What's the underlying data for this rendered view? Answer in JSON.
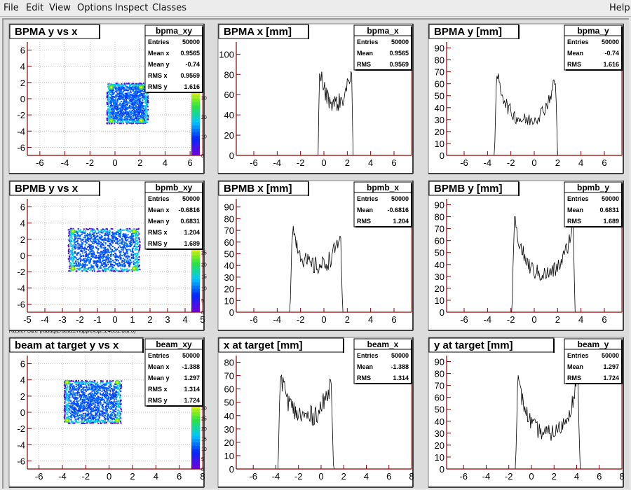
{
  "menubar": {
    "items": [
      "File",
      "Edit",
      "View",
      "Options",
      "Inspect",
      "Classes"
    ],
    "help": "Help"
  },
  "colors": {
    "axis": "#880000",
    "grid": "#aaaaaa",
    "hist": "#000000",
    "pad": "#ffffff",
    "bg": "#dcdcdc"
  },
  "raster_caption": "Raster Size (/adaql2/data1/happexsp_24851.dat.0)",
  "chart_data": [
    {
      "type": "heatmap",
      "title": "BPMA y vs x",
      "stats_title": "bpma_xy",
      "stats": [
        [
          "Entries",
          "50000"
        ],
        [
          "Mean x",
          "0.9565"
        ],
        [
          "Mean y",
          "-0.74"
        ],
        [
          "RMS x",
          "0.9569"
        ],
        [
          "RMS y",
          "1.616"
        ]
      ],
      "xlim": [
        -7,
        7
      ],
      "ylim": [
        -7,
        7
      ],
      "xticks": [
        -6,
        -4,
        -2,
        0,
        2,
        4,
        6
      ],
      "yticks": [
        -6,
        -4,
        -2,
        0,
        2,
        4,
        6
      ],
      "region": {
        "x": [
          -0.7,
          2.6
        ],
        "y": [
          -3.0,
          2.0
        ]
      },
      "hotspots": [
        [
          -0.3,
          1.4
        ],
        [
          2.1,
          1.4
        ],
        [
          -0.3,
          -2.7
        ],
        [
          2.1,
          -2.7
        ]
      ],
      "colorbar": {
        "labels": [
          "0",
          "10",
          "20",
          "30"
        ],
        "max": 35
      }
    },
    {
      "type": "line",
      "title": "BPMA x [mm]",
      "stats_title": "bpma_x",
      "stats": [
        [
          "Entries",
          "50000"
        ],
        [
          "Mean",
          "0.9565"
        ],
        [
          "RMS",
          "0.9569"
        ]
      ],
      "xlim": [
        -7.5,
        7.5
      ],
      "ylim": [
        0,
        112
      ],
      "xticks": [
        -6,
        -4,
        -2,
        0,
        2,
        4,
        6
      ],
      "yticks": [
        0,
        20,
        40,
        60,
        80,
        100
      ],
      "shape": {
        "start": -0.5,
        "end": 2.5,
        "left_peak": 100,
        "right_peak": 102,
        "mid": 50,
        "noise": 9,
        "rise": 0.14
      }
    },
    {
      "type": "line",
      "title": "BPMA y [mm]",
      "stats_title": "bpma_y",
      "stats": [
        [
          "Entries",
          "50000"
        ],
        [
          "Mean",
          "-0.74"
        ],
        [
          "RMS",
          "1.616"
        ]
      ],
      "xlim": [
        -7.5,
        7.5
      ],
      "ylim": [
        0,
        95
      ],
      "xticks": [
        -6,
        -4,
        -2,
        0,
        2,
        4,
        6
      ],
      "yticks": [
        0,
        10,
        20,
        30,
        40,
        50,
        60,
        70,
        80,
        90
      ],
      "shape": {
        "start": -3.4,
        "end": 2.0,
        "left_peak": 80,
        "right_peak": 74,
        "mid": 28,
        "noise": 6,
        "rise": 0.2
      }
    },
    {
      "type": "heatmap",
      "title": "BPMB y vs x",
      "stats_title": "bpmb_xy",
      "stats": [
        [
          "Entries",
          "50000"
        ],
        [
          "Mean x",
          "-0.6816"
        ],
        [
          "Mean y",
          "0.6831"
        ],
        [
          "RMS x",
          "1.204"
        ],
        [
          "RMS y",
          "1.689"
        ]
      ],
      "xlim": [
        -5,
        5
      ],
      "ylim": [
        -7,
        7
      ],
      "xticks": [
        -5,
        -4,
        -3,
        -2,
        -1,
        0,
        1,
        2,
        3,
        4,
        5
      ],
      "yticks": [
        -6,
        -4,
        -2,
        0,
        2,
        4,
        6
      ],
      "region": {
        "x": [
          -2.7,
          1.4
        ],
        "y": [
          -1.9,
          3.4
        ]
      },
      "hotspots": [
        [
          -2.4,
          3.0
        ],
        [
          1.1,
          3.0
        ],
        [
          -2.4,
          -1.6
        ],
        [
          1.1,
          -1.6
        ]
      ],
      "colorbar": {
        "labels": [
          "0",
          "5",
          "10",
          "15",
          "20",
          "25"
        ],
        "max": 28
      }
    },
    {
      "type": "line",
      "title": "BPMB x [mm]",
      "stats_title": "bpmb_x",
      "stats": [
        [
          "Entries",
          "50000"
        ],
        [
          "Mean",
          "-0.6816"
        ],
        [
          "RMS",
          "1.204"
        ]
      ],
      "xlim": [
        -7.5,
        7.5
      ],
      "ylim": [
        0,
        97
      ],
      "xticks": [
        -6,
        -4,
        -2,
        0,
        2,
        4,
        6
      ],
      "yticks": [
        0,
        10,
        20,
        30,
        40,
        50,
        60,
        70,
        80,
        90
      ],
      "shape": {
        "start": -2.9,
        "end": 1.6,
        "left_peak": 85,
        "right_peak": 78,
        "mid": 38,
        "noise": 8,
        "rise": 0.2
      }
    },
    {
      "type": "line",
      "title": "BPMB y [mm]",
      "stats_title": "bpmb_y",
      "stats": [
        [
          "Entries",
          "50000"
        ],
        [
          "Mean",
          "0.6831"
        ],
        [
          "RMS",
          "1.689"
        ]
      ],
      "xlim": [
        -7.5,
        7.5
      ],
      "ylim": [
        0,
        95
      ],
      "xticks": [
        -6,
        -4,
        -2,
        0,
        2,
        4,
        6
      ],
      "yticks": [
        0,
        10,
        20,
        30,
        40,
        50,
        60,
        70,
        80,
        90
      ],
      "shape": {
        "start": -1.9,
        "end": 3.5,
        "left_peak": 90,
        "right_peak": 85,
        "mid": 30,
        "noise": 7,
        "rise": 0.2
      }
    },
    {
      "type": "heatmap",
      "title": "beam at target y vs x",
      "stats_title": "beam_xy",
      "stats": [
        [
          "Entries",
          "50000"
        ],
        [
          "Mean x",
          "-1.388"
        ],
        [
          "Mean y",
          "1.297"
        ],
        [
          "RMS x",
          "1.314"
        ],
        [
          "RMS y",
          "1.724"
        ]
      ],
      "xlim": [
        -7,
        8
      ],
      "ylim": [
        -7,
        7
      ],
      "xticks": [
        -6,
        -4,
        -2,
        0,
        2,
        4,
        6,
        8
      ],
      "yticks": [
        -6,
        -4,
        -2,
        0,
        2,
        4,
        6
      ],
      "region": {
        "x": [
          -3.9,
          1.0
        ],
        "y": [
          -1.3,
          4.0
        ]
      },
      "hotspots": [
        [
          -3.6,
          3.7
        ],
        [
          0.7,
          3.7
        ],
        [
          -3.6,
          -1.0
        ],
        [
          0.7,
          -1.0
        ]
      ],
      "colorbar": {
        "labels": [
          "0",
          "5",
          "10",
          "15",
          "20",
          "25",
          "30"
        ],
        "max": 33
      }
    },
    {
      "type": "line",
      "title": "x at target [mm]",
      "stats_title": "beam_x",
      "stats": [
        [
          "Entries",
          "50000"
        ],
        [
          "Mean",
          "-1.388"
        ],
        [
          "RMS",
          "1.314"
        ]
      ],
      "xlim": [
        -7.5,
        8
      ],
      "ylim": [
        0,
        85
      ],
      "xticks": [
        -6,
        -4,
        -2,
        0,
        2,
        4,
        6,
        8
      ],
      "yticks": [
        0,
        10,
        20,
        30,
        40,
        50,
        60,
        70,
        80
      ],
      "shape": {
        "start": -3.8,
        "end": 1.1,
        "left_peak": 82,
        "right_peak": 75,
        "mid": 38,
        "noise": 8,
        "rise": 0.2
      }
    },
    {
      "type": "line",
      "title": "y at target [mm]",
      "stats_title": "beam_y",
      "stats": [
        [
          "Entries",
          "50000"
        ],
        [
          "Mean",
          "1.297"
        ],
        [
          "RMS",
          "1.724"
        ]
      ],
      "xlim": [
        -7.5,
        8
      ],
      "ylim": [
        0,
        95
      ],
      "xticks": [
        -6,
        -4,
        -2,
        0,
        2,
        4,
        6,
        8
      ],
      "yticks": [
        0,
        10,
        20,
        30,
        40,
        50,
        60,
        70,
        80,
        90
      ],
      "shape": {
        "start": -1.4,
        "end": 4.3,
        "left_peak": 86,
        "right_peak": 88,
        "mid": 28,
        "noise": 7,
        "rise": 0.2
      }
    }
  ]
}
